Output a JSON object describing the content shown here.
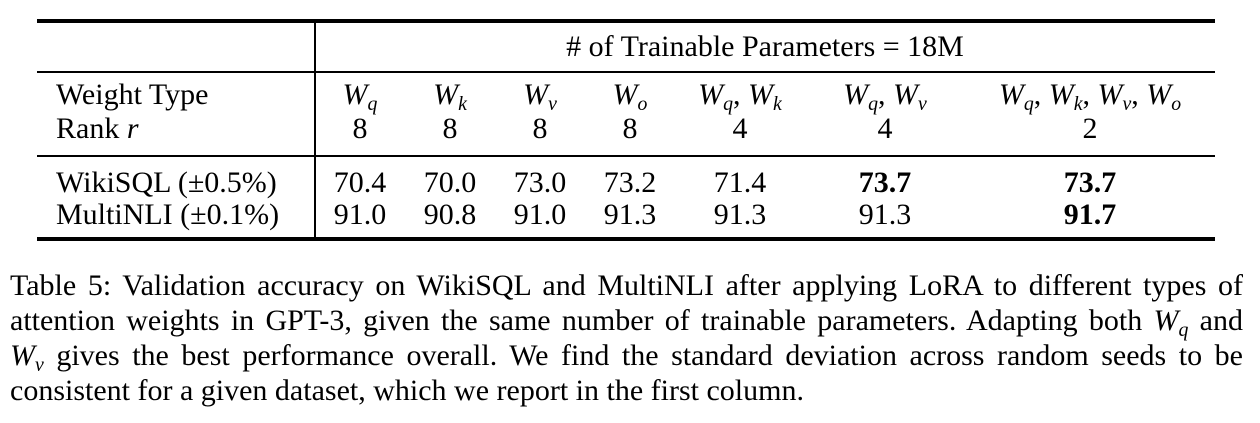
{
  "page": {
    "background_color": "#ffffff",
    "text_color": "#000000"
  },
  "table": {
    "group_header": "# of Trainable Parameters = 18M",
    "row_header": {
      "weight_type_label": "Weight Type",
      "rank_label": "Rank *r*"
    },
    "columns": [
      {
        "weight_type": "W_q",
        "rank": "8"
      },
      {
        "weight_type": "W_k",
        "rank": "8"
      },
      {
        "weight_type": "W_v",
        "rank": "8"
      },
      {
        "weight_type": "W_o",
        "rank": "8"
      },
      {
        "weight_type": "W_q, W_k",
        "rank": "4"
      },
      {
        "weight_type": "W_q, W_v",
        "rank": "4"
      },
      {
        "weight_type": "W_q, W_k, W_v, W_o",
        "rank": "2"
      }
    ],
    "rows": [
      {
        "label": "WikiSQL (±0.5%)",
        "values": [
          "70.4",
          "70.0",
          "73.0",
          "73.2",
          "71.4",
          "73.7",
          "73.7"
        ],
        "bold": [
          false,
          false,
          false,
          false,
          false,
          true,
          true
        ]
      },
      {
        "label": "MultiNLI (±0.1%)",
        "values": [
          "91.0",
          "90.8",
          "91.0",
          "91.3",
          "91.3",
          "91.3",
          "91.7"
        ],
        "bold": [
          false,
          false,
          false,
          false,
          false,
          false,
          true
        ]
      }
    ]
  },
  "caption": {
    "lines": [
      "Table 5: Validation accuracy on WikiSQL and MultiNLI after applying LoRA to different types of",
      "attention weights in GPT-3, given the same number of trainable parameters. Adapting both W_q and",
      "W_v gives the best performance overall. We find the standard deviation across random seeds to be",
      "consistent for a given dataset, which we report in the first column."
    ]
  }
}
